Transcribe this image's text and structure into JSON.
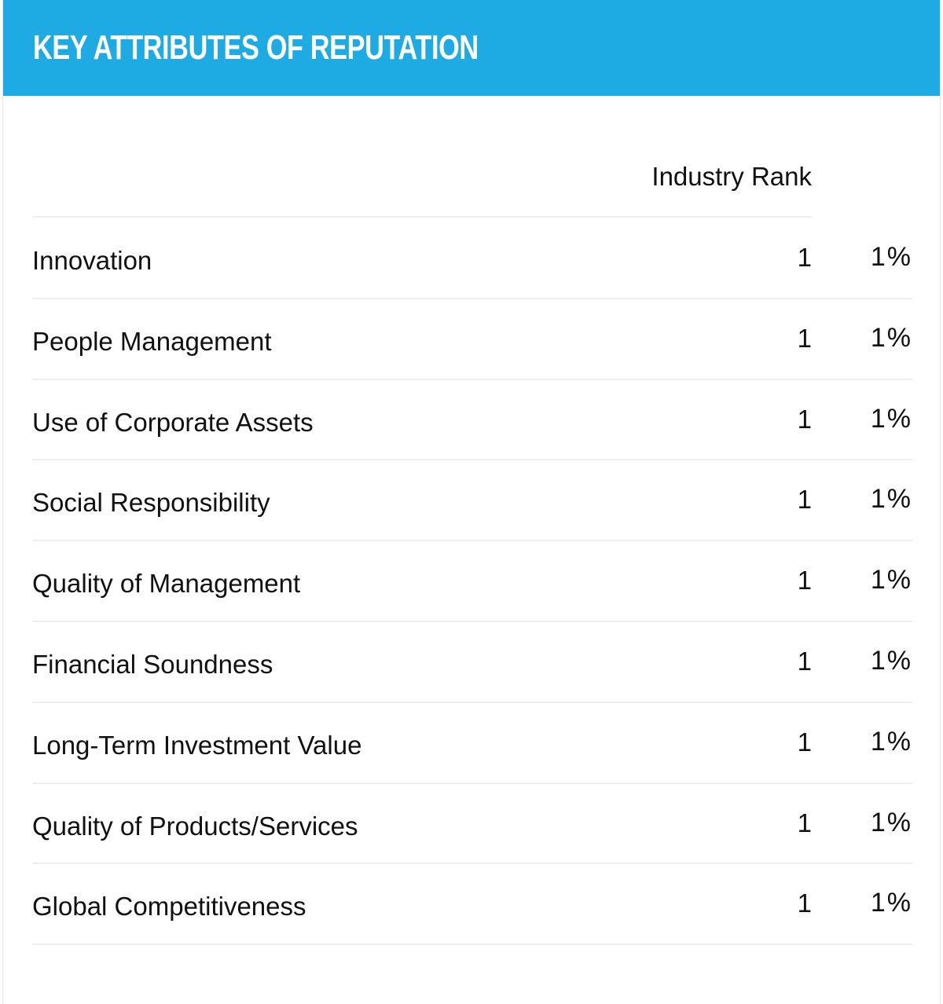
{
  "header": {
    "title": "KEY ATTRIBUTES OF REPUTATION"
  },
  "table": {
    "columns": {
      "rank_header": "Industry Rank"
    },
    "rows": [
      {
        "label": "Innovation",
        "rank": "1",
        "percent": "1%"
      },
      {
        "label": "People Management",
        "rank": "1",
        "percent": "1%"
      },
      {
        "label": "Use of Corporate Assets",
        "rank": "1",
        "percent": "1%"
      },
      {
        "label": "Social Responsibility",
        "rank": "1",
        "percent": "1%"
      },
      {
        "label": "Quality of Management",
        "rank": "1",
        "percent": "1%"
      },
      {
        "label": "Financial Soundness",
        "rank": "1",
        "percent": "1%"
      },
      {
        "label": "Long-Term Investment Value",
        "rank": "1",
        "percent": "1%"
      },
      {
        "label": "Quality of Products/Services",
        "rank": "1",
        "percent": "1%"
      },
      {
        "label": "Global Competitiveness",
        "rank": "1",
        "percent": "1%"
      }
    ]
  },
  "colors": {
    "header_background": "#1eaae2",
    "header_text": "#ffffff",
    "body_text": "#111111",
    "divider": "#eeeeee"
  }
}
